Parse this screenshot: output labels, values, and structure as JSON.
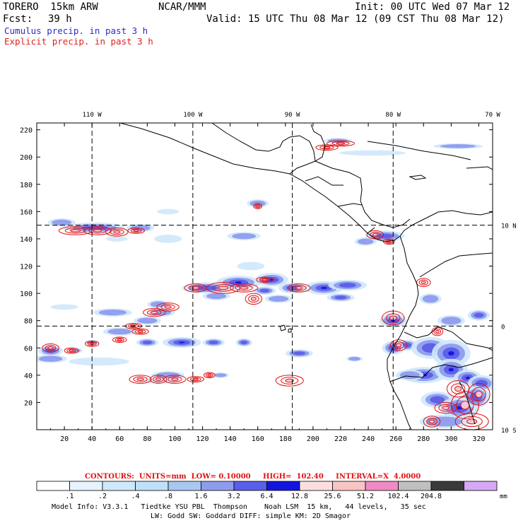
{
  "header": {
    "model": "TORERO  15km ARW",
    "org": "NCAR/MMM",
    "init": "Init: 00 UTC Wed 07 Mar 12",
    "fcst_label": "Fcst:",
    "fcst_hours": "39 h",
    "valid": "Valid: 15 UTC Thu 08 Mar 12 (09 CST Thu 08 Mar 12)",
    "cumulus": "Cumulus precip. in past 3 h",
    "explicit": "Explicit precip. in past 3 h"
  },
  "axes": {
    "top_labels": [
      "110 W",
      "100 W",
      "90 W",
      "80 W",
      "70 W"
    ],
    "right_labels": [
      "10 N",
      "0",
      "10 S"
    ],
    "x_ticks": [
      "20",
      "40",
      "60",
      "80",
      "100",
      "120",
      "140",
      "160",
      "180",
      "200",
      "220",
      "240",
      "260",
      "280",
      "300",
      "320"
    ],
    "y_ticks": [
      "20",
      "40",
      "60",
      "80",
      "100",
      "120",
      "140",
      "160",
      "180",
      "200",
      "220"
    ]
  },
  "contours_info": {
    "text": "CONTOURS:  UNITS=mm  LOW= 0.10000     HIGH=  102.40     INTERVAL=X  4.0000"
  },
  "colorbar": {
    "bins": [
      {
        "color": "#ffffff"
      },
      {
        "color": "#e6f3ff"
      },
      {
        "color": "#cfe8fb"
      },
      {
        "color": "#bfe0f8"
      },
      {
        "color": "#a9c7f0"
      },
      {
        "color": "#8f9cee"
      },
      {
        "color": "#5b5ee8"
      },
      {
        "color": "#1414e0"
      },
      {
        "color": "#fcdede"
      },
      {
        "color": "#f9c4c4"
      },
      {
        "color": "#f08ac4"
      },
      {
        "color": "#bfbfbf"
      },
      {
        "color": "#3a3a3a"
      },
      {
        "color": "#d6a8f5"
      }
    ],
    "labels": [
      ".1",
      ".2",
      ".4",
      ".8",
      "1.6",
      "3.2",
      "6.4",
      "12.8",
      "25.6",
      "51.2",
      "102.4",
      "204.8"
    ],
    "unit": "mm"
  },
  "footer": {
    "line1": "Model Info: V3.3.1   Tiedtke YSU PBL  Thompson    Noah LSM  15 km,   44 levels,   35 sec",
    "line2": "LW: Godd SW: Goddard DIFF: simple KM: 2D Smagor"
  },
  "map_data": {
    "x_range": [
      0,
      330
    ],
    "y_range": [
      0,
      225
    ],
    "lon_gridlines": [
      -110,
      -100,
      -90,
      -80
    ],
    "lat_gridlines": [
      10,
      0
    ],
    "grid_x": [
      40,
      113,
      185,
      258
    ],
    "grid_y": [
      76,
      150
    ],
    "cumulus_precip": [
      [
        10,
        58,
        9,
        4,
        2
      ],
      [
        28,
        58,
        5,
        2,
        1
      ],
      [
        40,
        64,
        5,
        2,
        1
      ],
      [
        80,
        64,
        8,
        3,
        2
      ],
      [
        105,
        64,
        14,
        4,
        3
      ],
      [
        128,
        64,
        8,
        3,
        2
      ],
      [
        150,
        64,
        6,
        3,
        2
      ],
      [
        190,
        56,
        10,
        3,
        2
      ],
      [
        230,
        52,
        6,
        2,
        1
      ],
      [
        10,
        52,
        12,
        3,
        1
      ],
      [
        45,
        50,
        22,
        3,
        0
      ],
      [
        95,
        40,
        12,
        3,
        1
      ],
      [
        133,
        40,
        6,
        2,
        1
      ],
      [
        90,
        36,
        14,
        2,
        0
      ],
      [
        20,
        90,
        10,
        2,
        0
      ],
      [
        55,
        86,
        14,
        3,
        1
      ],
      [
        90,
        86,
        10,
        3,
        1
      ],
      [
        80,
        80,
        10,
        3,
        1
      ],
      [
        60,
        72,
        12,
        3,
        1
      ],
      [
        88,
        92,
        8,
        3,
        1
      ],
      [
        123,
        104,
        18,
        4,
        2
      ],
      [
        146,
        108,
        16,
        5,
        3
      ],
      [
        170,
        110,
        12,
        5,
        3
      ],
      [
        165,
        102,
        8,
        3,
        2
      ],
      [
        185,
        104,
        10,
        4,
        2
      ],
      [
        208,
        104,
        14,
        5,
        3
      ],
      [
        225,
        106,
        14,
        4,
        2
      ],
      [
        220,
        97,
        10,
        3,
        2
      ],
      [
        175,
        96,
        10,
        3,
        1
      ],
      [
        130,
        98,
        10,
        3,
        1
      ],
      [
        18,
        152,
        10,
        3,
        1
      ],
      [
        42,
        148,
        22,
        4,
        2
      ],
      [
        75,
        148,
        10,
        3,
        1
      ],
      [
        95,
        140,
        10,
        3,
        0
      ],
      [
        58,
        140,
        8,
        2,
        0
      ],
      [
        150,
        142,
        12,
        3,
        1
      ],
      [
        155,
        120,
        10,
        3,
        0
      ],
      [
        95,
        160,
        8,
        2,
        0
      ],
      [
        160,
        166,
        8,
        3,
        1
      ],
      [
        252,
        142,
        14,
        4,
        2
      ],
      [
        238,
        138,
        8,
        3,
        1
      ],
      [
        218,
        212,
        10,
        2,
        1
      ],
      [
        243,
        203,
        24,
        2,
        0
      ],
      [
        305,
        208,
        18,
        2,
        1
      ],
      [
        258,
        80,
        10,
        5,
        3
      ],
      [
        268,
        62,
        8,
        4,
        2
      ],
      [
        285,
        60,
        14,
        8,
        2
      ],
      [
        300,
        56,
        14,
        10,
        3
      ],
      [
        280,
        40,
        16,
        6,
        3
      ],
      [
        300,
        44,
        12,
        8,
        3
      ],
      [
        312,
        38,
        10,
        6,
        3
      ],
      [
        322,
        34,
        10,
        6,
        2
      ],
      [
        290,
        22,
        12,
        6,
        2
      ],
      [
        306,
        16,
        14,
        8,
        3
      ],
      [
        318,
        24,
        10,
        8,
        2
      ],
      [
        258,
        60,
        8,
        5,
        2
      ],
      [
        285,
        96,
        8,
        4,
        1
      ],
      [
        300,
        80,
        10,
        4,
        1
      ],
      [
        320,
        84,
        8,
        4,
        2
      ],
      [
        270,
        40,
        10,
        4,
        1
      ],
      [
        295,
        6,
        18,
        5,
        1
      ]
    ],
    "explicit_precip": [
      [
        28,
        146,
        12,
        3
      ],
      [
        44,
        146,
        10,
        3
      ],
      [
        58,
        145,
        8,
        3
      ],
      [
        72,
        146,
        6,
        2
      ],
      [
        115,
        104,
        8,
        3
      ],
      [
        135,
        104,
        12,
        4
      ],
      [
        150,
        104,
        10,
        3
      ],
      [
        157,
        96,
        6,
        4
      ],
      [
        165,
        110,
        6,
        2
      ],
      [
        190,
        104,
        8,
        3
      ],
      [
        210,
        207,
        8,
        2
      ],
      [
        220,
        210,
        10,
        2
      ],
      [
        160,
        164,
        3,
        2
      ],
      [
        85,
        86,
        8,
        3
      ],
      [
        95,
        90,
        8,
        3
      ],
      [
        70,
        76,
        6,
        2
      ],
      [
        75,
        72,
        6,
        2
      ],
      [
        60,
        66,
        5,
        2
      ],
      [
        10,
        60,
        6,
        3
      ],
      [
        25,
        58,
        5,
        2
      ],
      [
        40,
        63,
        5,
        2
      ],
      [
        75,
        37,
        8,
        3
      ],
      [
        88,
        37,
        6,
        3
      ],
      [
        100,
        37,
        8,
        3
      ],
      [
        115,
        37,
        6,
        2
      ],
      [
        125,
        40,
        4,
        2
      ],
      [
        183,
        36,
        10,
        4
      ],
      [
        245,
        143,
        6,
        3
      ],
      [
        255,
        138,
        4,
        2
      ],
      [
        258,
        82,
        8,
        5
      ],
      [
        262,
        62,
        6,
        4
      ],
      [
        280,
        108,
        5,
        3
      ],
      [
        290,
        72,
        4,
        3
      ],
      [
        305,
        30,
        8,
        6
      ],
      [
        310,
        18,
        10,
        10
      ],
      [
        320,
        26,
        8,
        8
      ],
      [
        315,
        6,
        12,
        6
      ],
      [
        296,
        16,
        8,
        4
      ],
      [
        286,
        6,
        6,
        4
      ]
    ]
  }
}
